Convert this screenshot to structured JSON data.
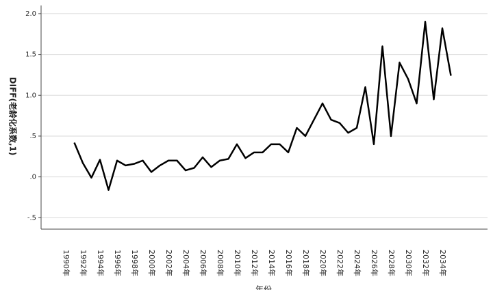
{
  "chart_data": {
    "type": "line",
    "y_label": "DIFF(老龄化系数,1)",
    "x_label": "年份",
    "categories": [
      "1990年",
      null,
      "1992年",
      null,
      "1994年",
      null,
      "1996年",
      null,
      "1998年",
      null,
      "2000年",
      null,
      "2002年",
      null,
      "2004年",
      null,
      "2006年",
      null,
      "2008年",
      null,
      "2010年",
      null,
      "2012年",
      null,
      "2014年",
      null,
      "2016年",
      null,
      "2018年",
      null,
      "2020年",
      null,
      "2022年",
      null,
      "2024年",
      null,
      "2026年",
      null,
      "2028年",
      null,
      "2030年",
      null,
      "2032年",
      null,
      "2034年",
      null
    ],
    "series": [
      {
        "name": "DIFF(老龄化系数,1)",
        "color": "#000000",
        "values": [
          null,
          0.42,
          0.17,
          -0.01,
          0.21,
          -0.16,
          0.2,
          0.14,
          0.16,
          0.2,
          0.06,
          0.14,
          0.2,
          0.2,
          0.08,
          0.11,
          0.24,
          0.12,
          0.2,
          0.22,
          0.4,
          0.23,
          0.3,
          0.3,
          0.4,
          0.4,
          0.3,
          0.6,
          0.5,
          0.7,
          0.9,
          0.7,
          0.66,
          0.54,
          0.6,
          1.1,
          0.4,
          1.6,
          0.5,
          1.4,
          1.2,
          0.9,
          1.9,
          0.95,
          1.82,
          1.24
        ]
      }
    ],
    "ylim": [
      -0.64,
      2.1
    ],
    "yticks": [
      {
        "value": 2.0,
        "label": "2.0"
      },
      {
        "value": 1.5,
        "label": "1.5"
      },
      {
        "value": 1.0,
        "label": "1.0"
      },
      {
        "value": 0.5,
        "label": ".5"
      },
      {
        "value": 0,
        "label": ".0"
      },
      {
        "value": -0.5,
        "label": "-.5"
      }
    ],
    "grid": true
  }
}
